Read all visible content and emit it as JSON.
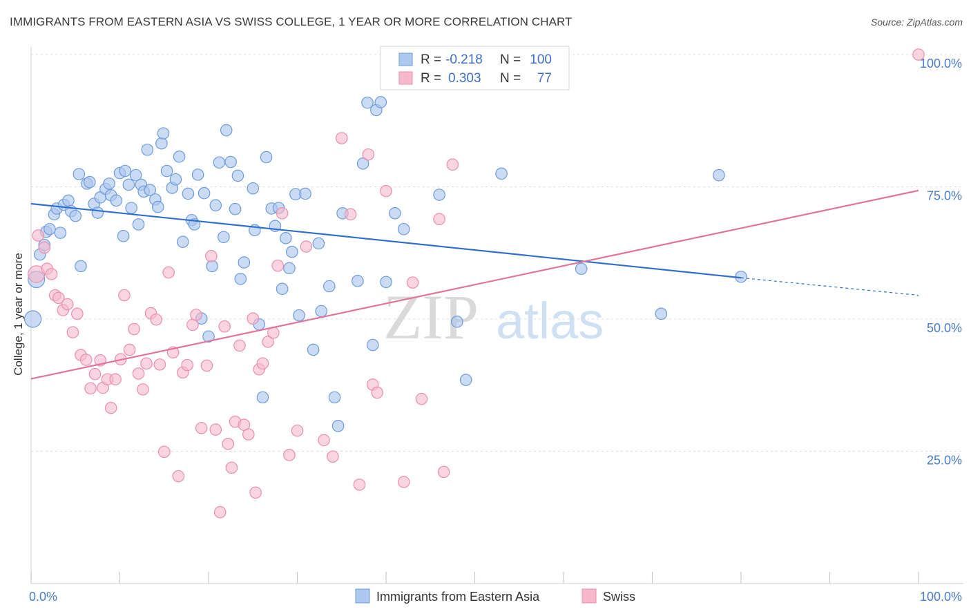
{
  "title": "IMMIGRANTS FROM EASTERN ASIA VS SWISS COLLEGE, 1 YEAR OR MORE CORRELATION CHART",
  "source": "Source: ZipAtlas.com",
  "watermark": {
    "zip": "ZIP",
    "atlas": "atlas"
  },
  "colors": {
    "blue_fill": "#adc8ee",
    "blue_stroke": "#6d9bdc",
    "blue_line": "#2f6fcc",
    "pink_fill": "#f6b8cb",
    "pink_stroke": "#e98eac",
    "pink_line": "#e2739a",
    "tick_label": "#4a7cc7",
    "grid": "#dcdcdc"
  },
  "legend": {
    "rows": [
      {
        "r_label": "R =",
        "r_value": "-0.218",
        "n_label": "N =",
        "n_value": "100"
      },
      {
        "r_label": "R =",
        "r_value": "0.303",
        "n_label": "N =",
        "n_value": "77"
      }
    ]
  },
  "bottom_legend": [
    "Immigrants from Eastern Asia",
    "Swiss"
  ],
  "chart_data": {
    "type": "scatter",
    "title": "IMMIGRANTS FROM EASTERN ASIA VS SWISS COLLEGE, 1 YEAR OR MORE CORRELATION CHART",
    "xlabel": "",
    "ylabel": "College, 1 year or more",
    "x_ticks": [
      "0.0%",
      "100.0%"
    ],
    "y_ticks": [
      "25.0%",
      "50.0%",
      "75.0%",
      "100.0%"
    ],
    "xlim": [
      0,
      100
    ],
    "ylim": [
      0,
      102
    ],
    "grid": true,
    "legend_position": "top-center",
    "series": [
      {
        "name": "Immigrants from Eastern Asia",
        "r": -0.218,
        "n": 100,
        "trend": {
          "x": [
            0,
            80
          ],
          "y": [
            71.8,
            57.8
          ],
          "dashed_to": [
            100,
            54.5
          ]
        },
        "points": [
          [
            0.2,
            50.0
          ],
          [
            0.6,
            57.5
          ],
          [
            1.0,
            62.2
          ],
          [
            1.5,
            64.0
          ],
          [
            1.7,
            66.5
          ],
          [
            2.1,
            67.0
          ],
          [
            2.6,
            69.8
          ],
          [
            2.9,
            70.9
          ],
          [
            3.3,
            66.3
          ],
          [
            3.7,
            71.6
          ],
          [
            4.2,
            72.4
          ],
          [
            4.5,
            70.4
          ],
          [
            5.0,
            69.5
          ],
          [
            5.4,
            77.4
          ],
          [
            5.6,
            60.0
          ],
          [
            6.3,
            75.6
          ],
          [
            6.6,
            75.9
          ],
          [
            7.1,
            71.8
          ],
          [
            7.5,
            70.1
          ],
          [
            7.8,
            73.0
          ],
          [
            8.4,
            74.6
          ],
          [
            8.8,
            75.6
          ],
          [
            9.0,
            73.4
          ],
          [
            9.6,
            72.4
          ],
          [
            10.0,
            77.6
          ],
          [
            10.4,
            65.7
          ],
          [
            10.6,
            78.0
          ],
          [
            11.0,
            75.4
          ],
          [
            11.3,
            71.0
          ],
          [
            11.8,
            77.2
          ],
          [
            12.1,
            67.9
          ],
          [
            12.4,
            75.4
          ],
          [
            12.7,
            74.1
          ],
          [
            13.1,
            82.0
          ],
          [
            13.4,
            74.4
          ],
          [
            14.0,
            72.6
          ],
          [
            14.3,
            71.2
          ],
          [
            14.7,
            83.2
          ],
          [
            14.9,
            85.1
          ],
          [
            15.3,
            78.0
          ],
          [
            15.9,
            74.8
          ],
          [
            16.3,
            76.4
          ],
          [
            16.7,
            80.7
          ],
          [
            17.1,
            64.6
          ],
          [
            17.7,
            73.7
          ],
          [
            18.1,
            68.7
          ],
          [
            18.4,
            67.9
          ],
          [
            18.8,
            77.3
          ],
          [
            19.2,
            50.1
          ],
          [
            19.5,
            73.8
          ],
          [
            20.0,
            46.7
          ],
          [
            20.4,
            60.0
          ],
          [
            20.8,
            71.5
          ],
          [
            21.2,
            79.6
          ],
          [
            21.7,
            65.5
          ],
          [
            22.0,
            85.7
          ],
          [
            22.5,
            79.7
          ],
          [
            23.0,
            70.8
          ],
          [
            23.3,
            77.1
          ],
          [
            23.6,
            57.6
          ],
          [
            24.0,
            60.7
          ],
          [
            25.0,
            74.7
          ],
          [
            25.2,
            66.8
          ],
          [
            25.7,
            49.0
          ],
          [
            26.1,
            35.2
          ],
          [
            26.5,
            80.6
          ],
          [
            27.1,
            70.9
          ],
          [
            27.5,
            67.6
          ],
          [
            27.9,
            71.0
          ],
          [
            28.3,
            55.7
          ],
          [
            28.7,
            65.3
          ],
          [
            29.1,
            59.6
          ],
          [
            29.4,
            62.7
          ],
          [
            29.8,
            73.6
          ],
          [
            30.2,
            50.7
          ],
          [
            30.9,
            73.7
          ],
          [
            31.8,
            44.2
          ],
          [
            32.4,
            64.3
          ],
          [
            32.7,
            51.5
          ],
          [
            33.6,
            56.2
          ],
          [
            34.2,
            35.2
          ],
          [
            34.6,
            29.8
          ],
          [
            35.1,
            70.0
          ],
          [
            36.8,
            57.2
          ],
          [
            37.4,
            79.4
          ],
          [
            37.9,
            90.9
          ],
          [
            38.5,
            45.1
          ],
          [
            38.9,
            89.5
          ],
          [
            39.4,
            91.0
          ],
          [
            40.0,
            57.0
          ],
          [
            41.0,
            70.0
          ],
          [
            42.0,
            67.0
          ],
          [
            46.0,
            73.5
          ],
          [
            48.0,
            49.5
          ],
          [
            49.0,
            38.5
          ],
          [
            53.0,
            77.5
          ],
          [
            62.0,
            59.5
          ],
          [
            71.0,
            51.0
          ],
          [
            77.5,
            77.2
          ],
          [
            80.0,
            58.0
          ]
        ]
      },
      {
        "name": "Swiss",
        "r": 0.303,
        "n": 77,
        "trend": {
          "x": [
            0,
            100
          ],
          "y": [
            38.7,
            74.3
          ]
        },
        "points": [
          [
            0.6,
            58.5
          ],
          [
            0.8,
            65.8
          ],
          [
            1.5,
            63.5
          ],
          [
            1.8,
            59.5
          ],
          [
            2.3,
            58.5
          ],
          [
            2.7,
            54.5
          ],
          [
            3.1,
            54.0
          ],
          [
            3.6,
            51.7
          ],
          [
            4.1,
            52.8
          ],
          [
            4.7,
            47.5
          ],
          [
            5.2,
            51.0
          ],
          [
            5.6,
            43.2
          ],
          [
            6.2,
            42.3
          ],
          [
            6.7,
            36.9
          ],
          [
            7.2,
            39.6
          ],
          [
            7.8,
            42.2
          ],
          [
            8.1,
            37.0
          ],
          [
            8.6,
            38.6
          ],
          [
            9.0,
            33.2
          ],
          [
            9.5,
            38.6
          ],
          [
            10.1,
            42.4
          ],
          [
            10.5,
            54.5
          ],
          [
            11.1,
            44.2
          ],
          [
            11.6,
            48.1
          ],
          [
            12.1,
            39.7
          ],
          [
            12.6,
            36.7
          ],
          [
            13.0,
            41.6
          ],
          [
            13.5,
            51.1
          ],
          [
            14.1,
            49.9
          ],
          [
            14.5,
            41.4
          ],
          [
            15.0,
            24.9
          ],
          [
            15.5,
            58.8
          ],
          [
            16.0,
            43.7
          ],
          [
            16.6,
            20.3
          ],
          [
            17.1,
            39.9
          ],
          [
            17.6,
            41.3
          ],
          [
            18.2,
            48.9
          ],
          [
            18.6,
            50.8
          ],
          [
            19.2,
            29.4
          ],
          [
            19.8,
            41.2
          ],
          [
            20.3,
            61.9
          ],
          [
            20.8,
            29.1
          ],
          [
            21.3,
            13.5
          ],
          [
            21.8,
            48.6
          ],
          [
            22.2,
            26.4
          ],
          [
            22.6,
            21.9
          ],
          [
            23.0,
            30.6
          ],
          [
            23.5,
            45.0
          ],
          [
            24.0,
            30.0
          ],
          [
            24.5,
            28.2
          ],
          [
            25.0,
            50.1
          ],
          [
            25.3,
            17.2
          ],
          [
            25.7,
            40.5
          ],
          [
            26.1,
            41.6
          ],
          [
            26.7,
            45.7
          ],
          [
            27.3,
            47.4
          ],
          [
            27.8,
            60.1
          ],
          [
            28.3,
            70.0
          ],
          [
            29.1,
            24.3
          ],
          [
            30.0,
            28.9
          ],
          [
            31.0,
            63.7
          ],
          [
            33.0,
            27.1
          ],
          [
            34.0,
            24.0
          ],
          [
            35.0,
            84.2
          ],
          [
            36.0,
            69.8
          ],
          [
            37.0,
            18.7
          ],
          [
            38.0,
            81.1
          ],
          [
            38.5,
            37.6
          ],
          [
            39.0,
            36.1
          ],
          [
            40.0,
            74.2
          ],
          [
            42.0,
            19.2
          ],
          [
            43.0,
            56.9
          ],
          [
            44.0,
            34.9
          ],
          [
            46.0,
            68.9
          ],
          [
            46.5,
            21.1
          ],
          [
            47.5,
            79.2
          ],
          [
            100.0,
            100.0
          ]
        ]
      }
    ]
  }
}
